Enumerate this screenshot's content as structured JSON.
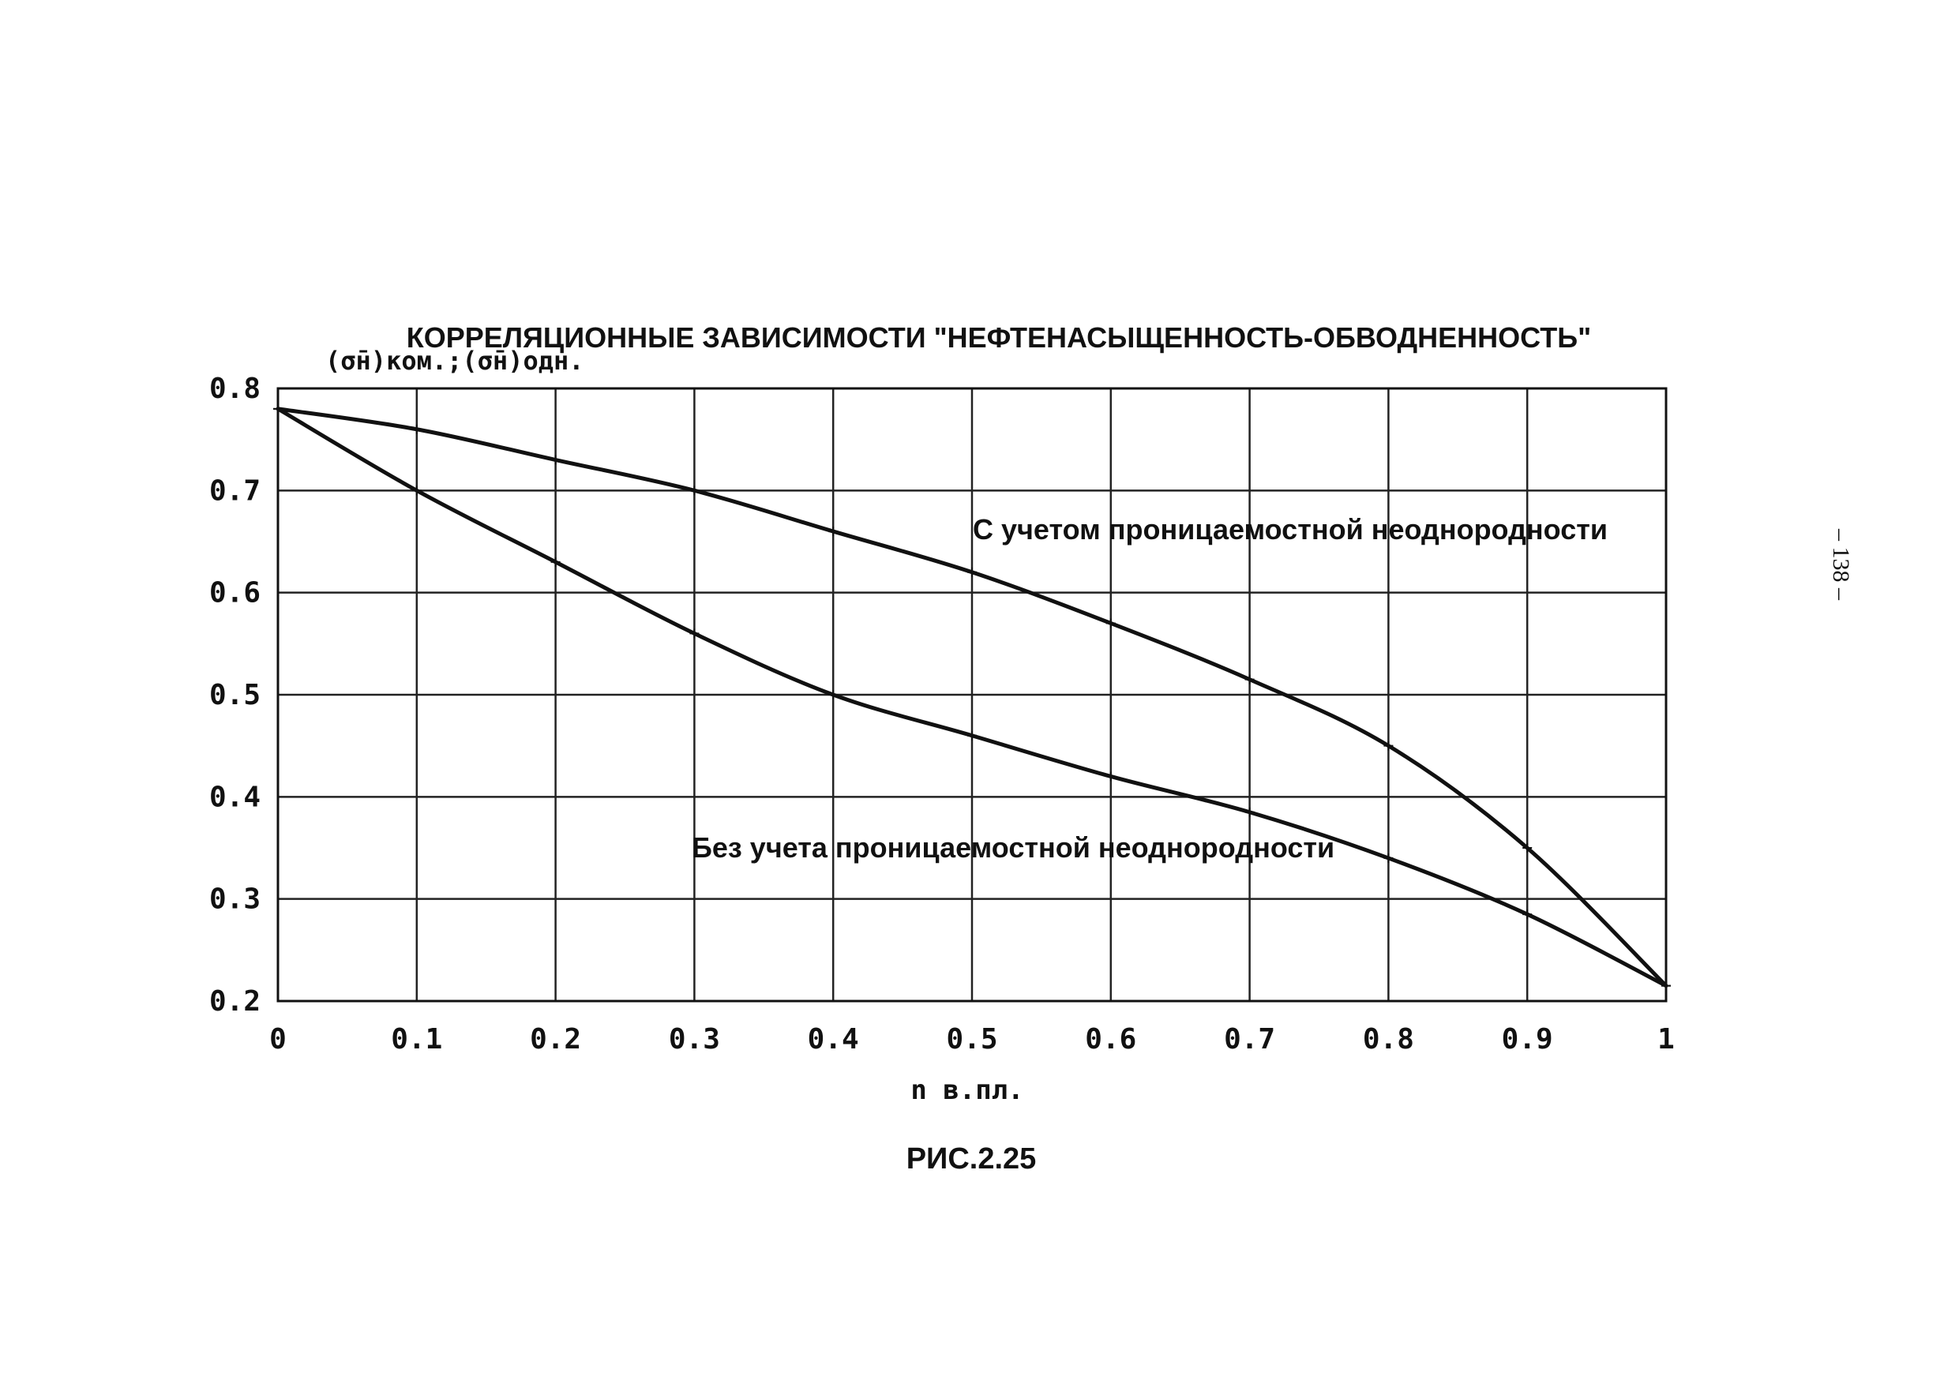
{
  "page": {
    "figure_caption": "РИС.2.25",
    "page_number": "– 138 –"
  },
  "chart_data": {
    "type": "line",
    "title": "КОРРЕЛЯЦИОННЫЕ ЗАВИСИМОСТИ \"НЕФТЕНАСЫЩЕННОСТЬ-ОБВОДНЕННОСТЬ\"",
    "ylabel": "(σ̄н)ком.;(σ̄н)одн.",
    "xlabel": "n в.пл.",
    "xlim": [
      0,
      1
    ],
    "ylim": [
      0.2,
      0.8
    ],
    "grid": true,
    "x_ticks": [
      "0",
      "0.1",
      "0.2",
      "0.3",
      "0.4",
      "0.5",
      "0.6",
      "0.7",
      "0.8",
      "0.9",
      "1"
    ],
    "y_ticks": [
      "0.8",
      "0.7",
      "0.6",
      "0.5",
      "0.4",
      "0.3",
      "0.2"
    ],
    "x": [
      0,
      0.1,
      0.2,
      0.3,
      0.4,
      0.5,
      0.6,
      0.7,
      0.8,
      0.9,
      1.0
    ],
    "series": [
      {
        "name": "С учетом проницаемостной неоднородности",
        "values": [
          0.78,
          0.76,
          0.73,
          0.7,
          0.66,
          0.62,
          0.57,
          0.515,
          0.45,
          0.35,
          0.215
        ],
        "color": "#111111"
      },
      {
        "name": "Без учета проницаемостной неоднородности",
        "values": [
          0.78,
          0.7,
          0.63,
          0.56,
          0.5,
          0.46,
          0.42,
          0.385,
          0.34,
          0.285,
          0.215
        ],
        "color": "#111111"
      }
    ],
    "annotations": [
      {
        "text": "С учетом проницаемостной неоднородности",
        "series": 0
      },
      {
        "text": "Без учета проницаемостной неоднородности",
        "series": 1
      }
    ]
  }
}
